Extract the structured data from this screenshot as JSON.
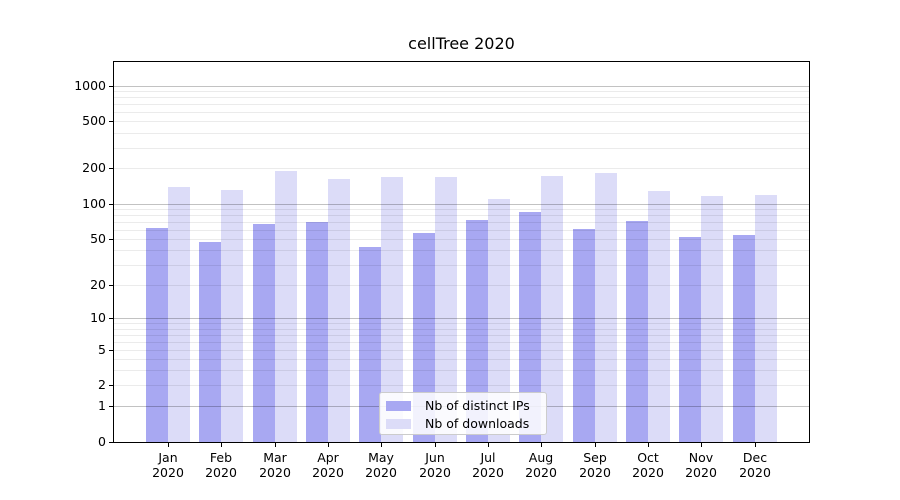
{
  "chart_data": {
    "type": "bar",
    "title": "cellTree 2020",
    "categories": [
      "Jan",
      "Feb",
      "Mar",
      "Apr",
      "May",
      "Jun",
      "Jul",
      "Aug",
      "Sep",
      "Oct",
      "Nov",
      "Dec"
    ],
    "category_year": "2020",
    "series": [
      {
        "name": "Nb of distinct IPs",
        "color": "#a8a8f2",
        "values": [
          62,
          47,
          67,
          70,
          43,
          56,
          73,
          86,
          61,
          71,
          52,
          54
        ]
      },
      {
        "name": "Nb of downloads",
        "color": "#dcdcf8",
        "values": [
          140,
          130,
          190,
          163,
          168,
          168,
          110,
          173,
          184,
          129,
          117,
          119
        ]
      }
    ],
    "yscale": "log1p",
    "ylim": [
      0,
      1250
    ],
    "yticks": [
      1000,
      500,
      200,
      100,
      50,
      20,
      10,
      5,
      2,
      1,
      0
    ],
    "major_gridlines": [
      1,
      10,
      100,
      1000
    ],
    "minor_gridlines": [
      2,
      3,
      4,
      5,
      6,
      7,
      8,
      9,
      20,
      30,
      40,
      50,
      60,
      70,
      80,
      90,
      200,
      300,
      400,
      500,
      600,
      700,
      800,
      900
    ],
    "grid": true,
    "legend_position": "lower center",
    "colors": {
      "axis": "#000000",
      "major_grid": "rgba(0,0,0,0.24)",
      "minor_grid": "rgba(0,0,0,0.08)",
      "legend_border": "#cccccc"
    }
  }
}
